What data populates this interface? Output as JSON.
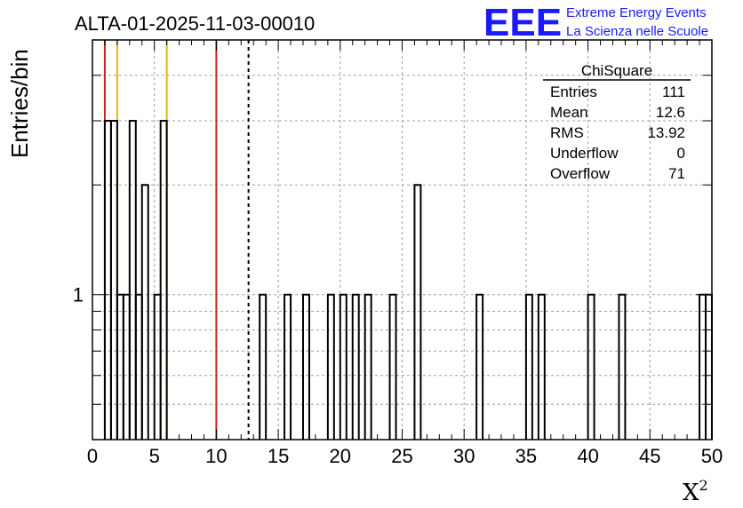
{
  "chart_data": {
    "type": "bar",
    "title": "ALTA-01-2025-11-03-00010",
    "xlabel": "X",
    "xlabel_sup": "2",
    "ylabel": "Entries/bin",
    "xlim": [
      0,
      50
    ],
    "ylim": [
      0.4,
      5
    ],
    "yscale": "log",
    "bin_width": 0.5,
    "grid": true,
    "x_ticks": [
      "0",
      "5",
      "10",
      "15",
      "20",
      "25",
      "30",
      "35",
      "40",
      "45",
      "50"
    ],
    "y_tick_labels": [
      "1"
    ],
    "bins": [
      {
        "x": 1.0,
        "y": 3
      },
      {
        "x": 1.5,
        "y": 3
      },
      {
        "x": 2.0,
        "y": 1
      },
      {
        "x": 2.5,
        "y": 1
      },
      {
        "x": 3.0,
        "y": 3
      },
      {
        "x": 3.5,
        "y": 1
      },
      {
        "x": 4.0,
        "y": 2
      },
      {
        "x": 5.0,
        "y": 1
      },
      {
        "x": 5.5,
        "y": 3
      },
      {
        "x": 13.5,
        "y": 1
      },
      {
        "x": 15.5,
        "y": 1
      },
      {
        "x": 17.0,
        "y": 1
      },
      {
        "x": 19.0,
        "y": 1
      },
      {
        "x": 20.0,
        "y": 1
      },
      {
        "x": 21.0,
        "y": 1
      },
      {
        "x": 22.0,
        "y": 1
      },
      {
        "x": 24.0,
        "y": 1
      },
      {
        "x": 26.0,
        "y": 2
      },
      {
        "x": 31.0,
        "y": 1
      },
      {
        "x": 35.0,
        "y": 1
      },
      {
        "x": 36.0,
        "y": 1
      },
      {
        "x": 40.0,
        "y": 1
      },
      {
        "x": 42.5,
        "y": 1
      },
      {
        "x": 49.0,
        "y": 1
      },
      {
        "x": 49.5,
        "y": 1
      }
    ],
    "vertical_lines": [
      {
        "x": 1,
        "color": "#d62020",
        "style": "solid"
      },
      {
        "x": 2,
        "color": "#e6b800",
        "style": "solid"
      },
      {
        "x": 6,
        "color": "#e6b800",
        "style": "solid"
      },
      {
        "x": 10,
        "color": "#d62020",
        "style": "solid"
      },
      {
        "x": 12.6,
        "color": "#000000",
        "style": "dashed"
      }
    ],
    "stats_box": {
      "name": "ChiSquare",
      "rows": [
        {
          "label": "Entries",
          "value": "111"
        },
        {
          "label": "Mean",
          "value": "12.6"
        },
        {
          "label": "RMS",
          "value": "13.92"
        },
        {
          "label": "Underflow",
          "value": "0"
        },
        {
          "label": "Overflow",
          "value": "71"
        }
      ]
    }
  },
  "logo": {
    "mark": "EEE",
    "line1": "Extreme Energy Events",
    "line2": "La Scienza nelle Scuole",
    "color": "#1a1aff"
  }
}
